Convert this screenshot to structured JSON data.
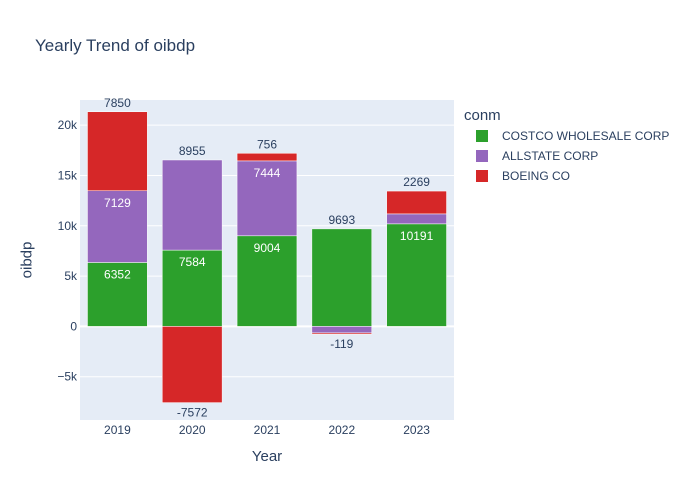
{
  "chart_data": {
    "type": "bar",
    "barmode": "relative",
    "title": "Yearly Trend of oibdp",
    "xlabel": "Year",
    "ylabel": "oibdp",
    "legend_title": "conm",
    "legend_position": "top-right",
    "grid": true,
    "ylim": [
      -9300,
      22500
    ],
    "y_ticks": [
      {
        "value": -5000,
        "label": "−5k"
      },
      {
        "value": 0,
        "label": "0"
      },
      {
        "value": 5000,
        "label": "5k"
      },
      {
        "value": 10000,
        "label": "10k"
      },
      {
        "value": 15000,
        "label": "15k"
      },
      {
        "value": 20000,
        "label": "20k"
      }
    ],
    "categories": [
      "2019",
      "2020",
      "2021",
      "2022",
      "2023"
    ],
    "series": [
      {
        "name": "COSTCO WHOLESALE CORP",
        "color": "#2ca02c",
        "values": [
          6352,
          7584,
          9004,
          9693,
          10191
        ],
        "labels": [
          "6352",
          "7584",
          "9004",
          "9693",
          "10191"
        ]
      },
      {
        "name": "ALLSTATE CORP",
        "color": "#9467bd",
        "values": [
          7129,
          8955,
          7444,
          -650,
          990
        ],
        "labels": [
          "7129",
          "8955",
          "7444",
          "",
          ""
        ]
      },
      {
        "name": "BOEING CO",
        "color": "#d62728",
        "values": [
          7850,
          -7572,
          756,
          -119,
          2269
        ],
        "labels": [
          "7850",
          "-7572",
          "756",
          "-119",
          "2269"
        ]
      }
    ],
    "colors": {
      "plot_bg": "#e5ecf6",
      "grid": "#ffffff",
      "text": "#2a3f5f"
    }
  }
}
